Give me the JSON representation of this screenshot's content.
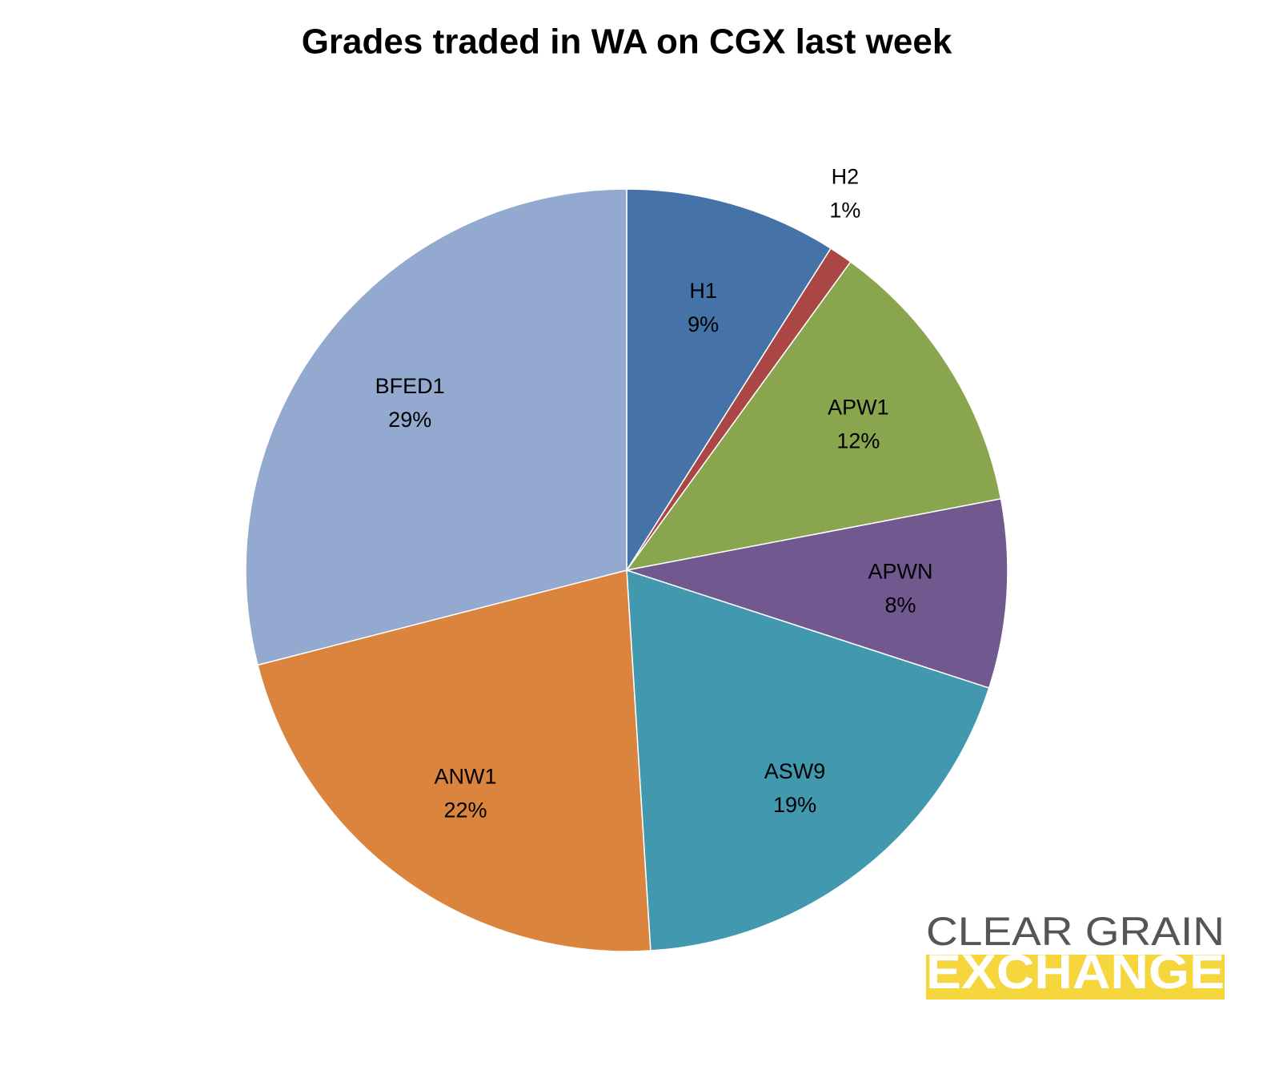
{
  "chart_data": {
    "type": "pie",
    "title": "Grades traded in WA on CGX last week",
    "categories": [
      "H1",
      "H2",
      "APW1",
      "APWN",
      "ASW9",
      "ANW1",
      "BFED1"
    ],
    "values": [
      9,
      1,
      12,
      8,
      19,
      22,
      29
    ],
    "value_labels": [
      "9%",
      "1%",
      "12%",
      "8%",
      "19%",
      "22%",
      "29%"
    ],
    "colors": [
      "#4572a7",
      "#aa4643",
      "#89a54e",
      "#71588f",
      "#4198af",
      "#db843d",
      "#93a9cf"
    ]
  },
  "logo": {
    "line1": "CLEAR GRAIN",
    "line2": "EXCHANGE"
  }
}
